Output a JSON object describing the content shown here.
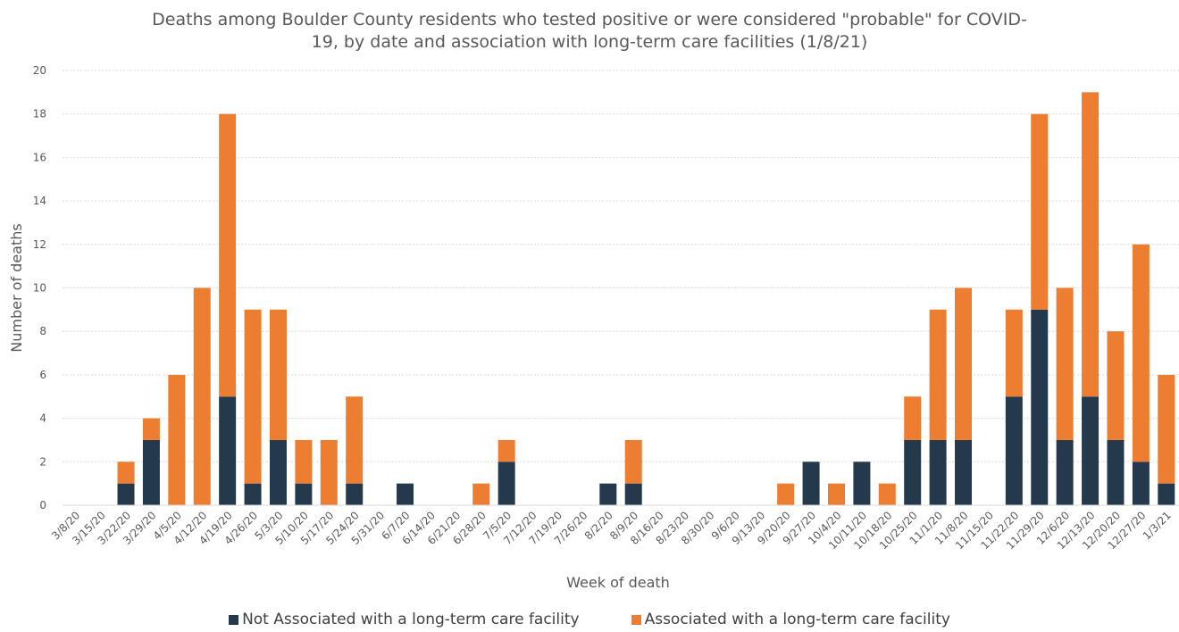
{
  "chart_data": {
    "type": "bar",
    "stacked": true,
    "title_line1": "Deaths among Boulder County residents who tested positive or were considered \"probable\" for COVID-",
    "title_line2": "19, by date and association with long-term care facilities (1/8/21)",
    "xlabel": "Week of death",
    "ylabel": "Number of deaths",
    "ylim": [
      0,
      20
    ],
    "yticks": [
      0,
      2,
      4,
      6,
      8,
      10,
      12,
      14,
      16,
      18,
      20
    ],
    "grid": "horizontal",
    "legend_position": "bottom",
    "categories": [
      "3/8/20",
      "3/15/20",
      "3/22/20",
      "3/29/20",
      "4/5/20",
      "4/12/20",
      "4/19/20",
      "4/26/20",
      "5/3/20",
      "5/10/20",
      "5/17/20",
      "5/24/20",
      "5/31/20",
      "6/7/20",
      "6/14/20",
      "6/21/20",
      "6/28/20",
      "7/5/20",
      "7/12/20",
      "7/19/20",
      "7/26/20",
      "8/2/20",
      "8/9/20",
      "8/16/20",
      "8/23/20",
      "8/30/20",
      "9/6/20",
      "9/13/20",
      "9/20/20",
      "9/27/20",
      "10/4/20",
      "10/11/20",
      "10/18/20",
      "10/25/20",
      "11/1/20",
      "11/8/20",
      "11/15/20",
      "11/22/20",
      "11/29/20",
      "12/6/20",
      "12/13/20",
      "12/20/20",
      "12/27/20",
      "1/3/21"
    ],
    "series": [
      {
        "name": "Not Associated with a long-term care facility",
        "color": "#243a4c",
        "values": [
          0,
          0,
          1,
          3,
          0,
          0,
          5,
          1,
          3,
          1,
          0,
          1,
          0,
          1,
          0,
          0,
          0,
          2,
          0,
          0,
          0,
          1,
          1,
          0,
          0,
          0,
          0,
          0,
          0,
          2,
          0,
          2,
          0,
          3,
          3,
          3,
          0,
          5,
          9,
          3,
          5,
          3,
          2,
          1
        ]
      },
      {
        "name": "Associated with a long-term care facility",
        "color": "#ed7d31",
        "values": [
          0,
          0,
          1,
          1,
          6,
          10,
          13,
          8,
          6,
          2,
          3,
          4,
          0,
          0,
          0,
          0,
          1,
          1,
          0,
          0,
          0,
          0,
          2,
          0,
          0,
          0,
          0,
          0,
          1,
          0,
          1,
          0,
          1,
          2,
          6,
          7,
          0,
          4,
          9,
          7,
          14,
          5,
          10,
          5
        ]
      }
    ]
  }
}
